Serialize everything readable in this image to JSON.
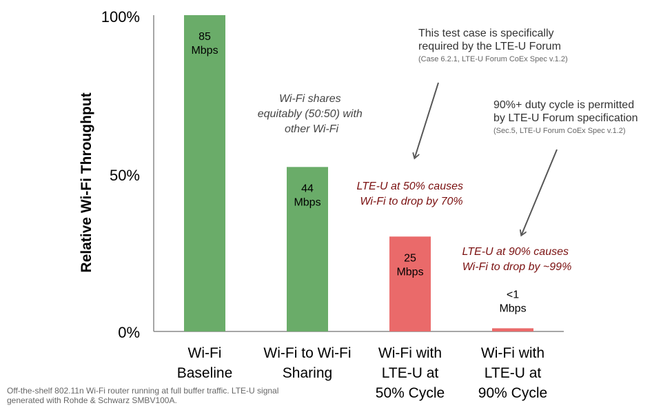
{
  "chart_data": {
    "type": "bar",
    "ylabel": "Relative Wi-Fi Throughput",
    "ylim": [
      0,
      100
    ],
    "yticks": [
      "0%",
      "50%",
      "100%"
    ],
    "grid": false,
    "categories": [
      [
        "Wi-Fi",
        "Baseline"
      ],
      [
        "Wi-Fi to Wi-Fi",
        "Sharing"
      ],
      [
        "Wi-Fi with",
        "LTE-U at",
        "50% Cycle"
      ],
      [
        "Wi-Fi with",
        "LTE-U at",
        "90% Cycle"
      ]
    ],
    "values": [
      100,
      52,
      30,
      1
    ],
    "bar_labels": [
      [
        "85",
        "Mbps"
      ],
      [
        "44",
        "Mbps"
      ],
      [
        "25",
        "Mbps"
      ],
      [
        "<1",
        "Mbps"
      ]
    ],
    "bar_colors": [
      "#6aac69",
      "#6aac69",
      "#ea6a6a",
      "#ea6a6a"
    ],
    "annotations": {
      "sharing_note": [
        "Wi-Fi shares",
        "equitably (50:50) with",
        "other Wi-Fi"
      ],
      "lte50_note": [
        "LTE-U at 50% causes",
        "Wi-Fi to drop by 70%"
      ],
      "lte90_note": [
        "LTE-U at 90% causes",
        "Wi-Fi to drop by ~99%"
      ],
      "forum_note": [
        "This test case is specifically",
        "required by the LTE-U Forum"
      ],
      "forum_ref": "(Case 6.2.1, LTE-U Forum CoEx Spec v.1.2)",
      "duty_note": [
        "90%+ duty cycle is permitted",
        "by LTE-U Forum specification"
      ],
      "duty_ref": "(Sec.5, LTE-U Forum CoEx Spec v.1.2)"
    },
    "footnote": [
      "Off-the-shelf 802.11n Wi-Fi router running at full buffer traffic. LTE-U signal",
      "generated with Rohde & Schwarz SMBV100A."
    ]
  }
}
